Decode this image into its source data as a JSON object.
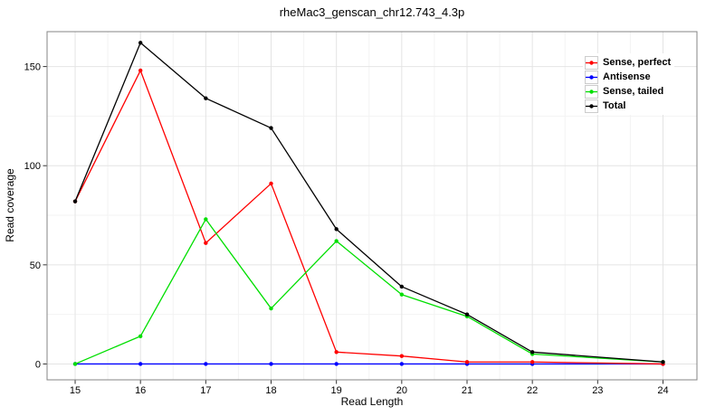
{
  "window": {
    "background": "#ffffff"
  },
  "chart_data": {
    "type": "line",
    "title": "rheMac3_genscan_chr12.743_4.3p",
    "xlabel": "Read Length",
    "ylabel": "Read coverage",
    "x": [
      15,
      16,
      17,
      18,
      19,
      20,
      21,
      22,
      24
    ],
    "series": [
      {
        "name": "Sense, perfect",
        "color": "#ff0000",
        "values": [
          82,
          148,
          61,
          91,
          6,
          4,
          1,
          1,
          0
        ]
      },
      {
        "name": "Antisense",
        "color": "#0000ff",
        "values": [
          0,
          0,
          0,
          0,
          0,
          0,
          0,
          0,
          0
        ]
      },
      {
        "name": "Sense, tailed",
        "color": "#00df00",
        "values": [
          0,
          14,
          73,
          28,
          62,
          35,
          24,
          5,
          1
        ]
      },
      {
        "name": "Total",
        "color": "#000000",
        "values": [
          82,
          162,
          134,
          119,
          68,
          39,
          25,
          6,
          1
        ]
      }
    ],
    "x_ticks": [
      15,
      16,
      17,
      18,
      19,
      20,
      21,
      22,
      23,
      24
    ],
    "y_ticks": [
      0,
      50,
      100,
      150
    ],
    "x_minor_ticks": [
      15.5,
      16.5,
      17.5,
      18.5,
      19.5,
      20.5,
      21.5,
      22.5,
      23.5
    ],
    "y_minor_ticks": [
      25,
      75,
      125
    ],
    "xlim": [
      14.57,
      24.52
    ],
    "ylim": [
      -8,
      167.6
    ],
    "grid": "major and minor, light gray on white",
    "legend_position": "top-right",
    "marker": "filled-circle",
    "panel_border_color": "#848484",
    "major_grid_color": "#e4e4e4",
    "minor_grid_color": "#f3f3f3",
    "tick_color": "#333333",
    "text_color": "#000000"
  }
}
